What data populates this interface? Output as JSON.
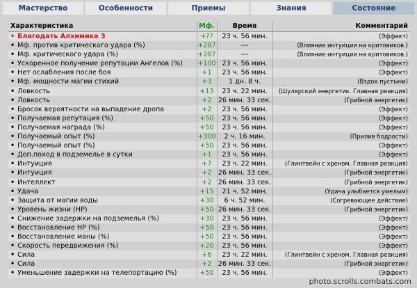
{
  "tabs": [
    "Мастерство",
    "Особенности",
    "Приемы",
    "Знания",
    "Состояние"
  ],
  "active_tab": 4,
  "table": {
    "header": [
      "Характеристика",
      "Мф.",
      "Время",
      "Комментарий"
    ],
    "rows": [
      [
        "Благодать Алхимика 3",
        "+??",
        "23 ч. 56 мин.",
        "(Эффект)"
      ],
      [
        "Мф. против критического удара (%)",
        "+287",
        "---",
        "(Влияние интуиции на критовиков.)"
      ],
      [
        "Мф. критического удара (%)",
        "+287",
        "---",
        "(Влияние интуиции на критовиков.)"
      ],
      [
        "Ускоренное получение репутации Ангелов (%)",
        "+100",
        "23 ч. 56 мин.",
        "(Эффект)"
      ],
      [
        "Нет ослабления после боя",
        "+1",
        "23 ч. 56 мин.",
        "(Эффект)"
      ],
      [
        "Мф. мощности магии стихий",
        "+3",
        "1 дн. 8 ч.",
        "(Вздох пустыни)"
      ],
      [
        "Ловкость",
        "+13",
        "23 ч. 22 мин.",
        "(Шулерский энергетик. Главная реакция)"
      ],
      [
        "Ловкость",
        "+2",
        "26 мин. 33 сек.",
        "(Грибной энергетик)"
      ],
      [
        "Бросок вероятности на выпадение дропа",
        "+2",
        "23 ч. 56 мин.",
        "(Эффект)"
      ],
      [
        "Получаемая репутация (%)",
        "+50",
        "23 ч. 56 мин.",
        "(Эффект)"
      ],
      [
        "Получаемая награда (%)",
        "+50",
        "23 ч. 56 мин.",
        "(Эффект)"
      ],
      [
        "Получаемый опыт (%)",
        "+300",
        "2 ч. 16 мин.",
        "(Прилив бодрости)"
      ],
      [
        "Получаемый опыт (%)",
        "+50",
        "23 ч. 56 мин.",
        "(Эффект)"
      ],
      [
        "Доп.поход в подземелье в сутки",
        "+1",
        "23 ч. 56 мин.",
        "(Эффект)"
      ],
      [
        "Интуиция",
        "+7",
        "23 ч. 22 мин.",
        "(Глинтвейн с хреном. Главная реакция)"
      ],
      [
        "Интуиция",
        "+2",
        "26 мин. 33 сек.",
        "(Грибной энергетик)"
      ],
      [
        "Интеллект",
        "+2",
        "26 мин. 33 сек.",
        "(Грибной энергетик)"
      ],
      [
        "Удача",
        "+15",
        "21 ч. 52 мин.",
        "(Удача улыбается умелым)"
      ],
      [
        "Защита от магии воды",
        "+30",
        "6 ч. 52 мин.",
        "(Согревающее действие)"
      ],
      [
        "Уровень жизни (HP)",
        "+50",
        "26 мин. 33 сек.",
        "(Грибной энергетик)"
      ],
      [
        "Снижение задержки на подземелья (%)",
        "+30",
        "23 ч. 56 мин.",
        "(Эффект)"
      ],
      [
        "Восстановление HP (%)",
        "+50",
        "23 ч. 56 мин.",
        "(Эффект)"
      ],
      [
        "Восстановление маны (%)",
        "+50",
        "23 ч. 56 мин.",
        "(Эффект)"
      ],
      [
        "Скорость передвижения (%)",
        "+20",
        "23 ч. 56 мин.",
        "(Эффект)"
      ],
      [
        "Сила",
        "+6",
        "23 ч. 22 мин.",
        "(Глинтвейн с хреном. Главная реакция)"
      ],
      [
        "Сила",
        "+2",
        "26 мин. 33 сек.",
        "(Грибной энергетик)"
      ],
      [
        "Уменьшение задержки на телепортацию (%)",
        "+50",
        "23 ч. 56 мин.",
        "(Эффект)"
      ]
    ]
  },
  "watermark": "photo.scrolls.combats.com"
}
